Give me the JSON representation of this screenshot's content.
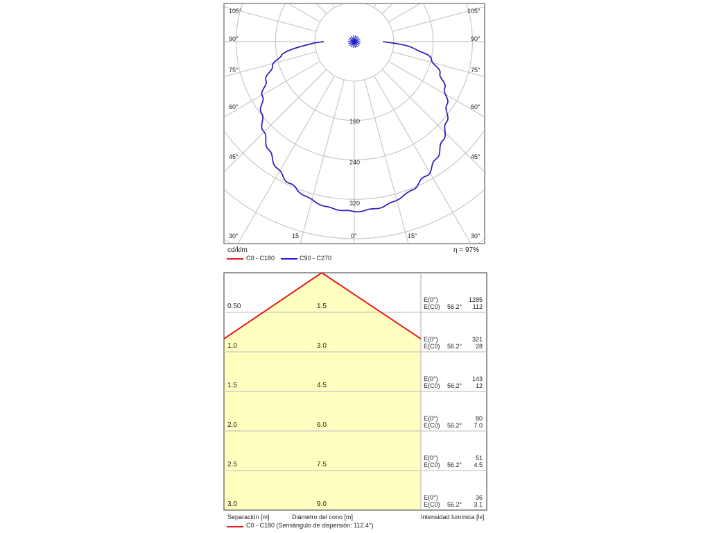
{
  "polar": {
    "unit": "cd/klm",
    "efficiency": "η = 97%",
    "angle_labels_left": [
      "105°",
      "90°",
      "75°",
      "60°",
      "45°",
      "30°"
    ],
    "angle_labels_right": [
      "105°",
      "90°",
      "75°",
      "60°",
      "45°",
      "30°"
    ],
    "bottom_labels": [
      "15",
      "0°",
      "15°"
    ],
    "radial_labels": [
      "160",
      "240",
      "320"
    ],
    "legend": [
      {
        "label": "C0 - C180",
        "color": "#e31a1c"
      },
      {
        "label": "C90 - C270",
        "color": "#1f1fcc"
      }
    ]
  },
  "cone": {
    "rows": [
      {
        "sep": "0.50",
        "diam": "1.5",
        "e0_label": "E(0°)",
        "e0": "1285",
        "ec_label": "E(C0)",
        "ec_angle": "56.2°",
        "ec": "112"
      },
      {
        "sep": "1.0",
        "diam": "3.0",
        "e0_label": "E(0°)",
        "e0": "321",
        "ec_label": "E(C0)",
        "ec_angle": "56.2°",
        "ec": "28"
      },
      {
        "sep": "1.5",
        "diam": "4.5",
        "e0_label": "E(0°)",
        "e0": "143",
        "ec_label": "E(C0)",
        "ec_angle": "56.2°",
        "ec": "12"
      },
      {
        "sep": "2.0",
        "diam": "6.0",
        "e0_label": "E(0°)",
        "e0": "80",
        "ec_label": "E(C0)",
        "ec_angle": "56.2°",
        "ec": "7.0"
      },
      {
        "sep": "2.5",
        "diam": "7.5",
        "e0_label": "E(0°)",
        "e0": "51",
        "ec_label": "E(C0)",
        "ec_angle": "56.2°",
        "ec": "4.5"
      },
      {
        "sep": "3.0",
        "diam": "9.0",
        "e0_label": "E(0°)",
        "e0": "36",
        "ec_label": "E(C0)",
        "ec_angle": "56.2°",
        "ec": "3.1"
      }
    ],
    "footer_sep": "Separación [m]",
    "footer_diam": "Diámetro del cono [m]",
    "footer_int": "Intensidad lumínica [lx]",
    "legend_label": "C0 - C180 (Semiángulo de dispersión: 112.4°)",
    "legend_color": "#e31a1c"
  },
  "chart_data": [
    {
      "type": "polar",
      "units": "cd/klm",
      "radial_ticks": [
        160,
        240,
        320
      ],
      "angle_ticks_deg": [
        0,
        15,
        30,
        45,
        60,
        75,
        90,
        105
      ],
      "efficiency": "97%",
      "series": [
        {
          "name": "C90 - C270",
          "color": "#1f1fcc",
          "angles_deg": [
            0,
            10,
            20,
            30,
            40,
            45,
            50,
            60,
            70,
            80,
            85,
            90
          ],
          "values": [
            345,
            340,
            325,
            305,
            275,
            260,
            245,
            215,
            185,
            150,
            110,
            60
          ]
        },
        {
          "name": "C0 - C180",
          "color": "#e31a1c",
          "angles_deg": [
            0,
            10,
            20,
            30,
            40,
            45,
            50,
            60,
            70,
            80,
            85,
            90
          ],
          "values": [
            345,
            340,
            325,
            305,
            275,
            260,
            245,
            215,
            185,
            150,
            110,
            60
          ]
        }
      ]
    },
    {
      "type": "table",
      "title": "",
      "half_angle_deg": 112.4,
      "columns": [
        "Separación [m]",
        "Diámetro del cono [m]",
        "E(0°)",
        "E(C0) 56.2°"
      ],
      "rows": [
        [
          0.5,
          1.5,
          1285,
          112
        ],
        [
          1.0,
          3.0,
          321,
          28
        ],
        [
          1.5,
          4.5,
          143,
          12
        ],
        [
          2.0,
          6.0,
          80,
          7.0
        ],
        [
          2.5,
          7.5,
          51,
          4.5
        ],
        [
          3.0,
          9.0,
          36,
          3.1
        ]
      ]
    }
  ]
}
